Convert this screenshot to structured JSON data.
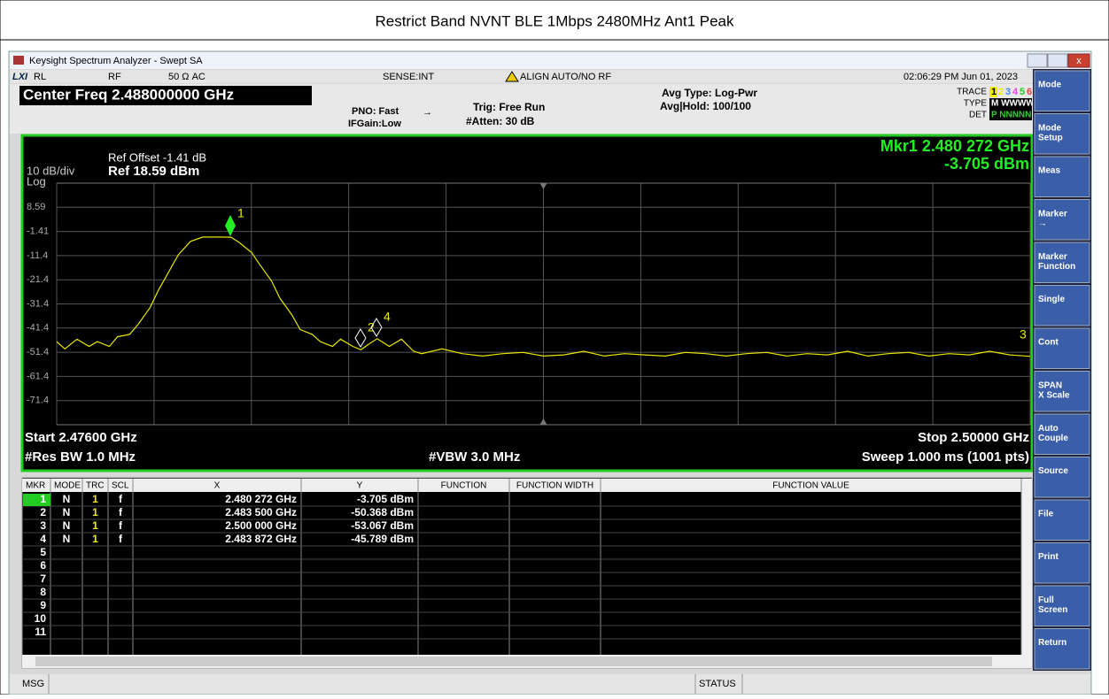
{
  "page_title": "Restrict Band NVNT BLE 1Mbps 2480MHz Ant1 Peak",
  "window_title": "Keysight Spectrum Analyzer - Swept SA",
  "status_bar": [
    "RL",
    "RF",
    "50 Ω  AC",
    "SENSE:INT",
    "ALIGN AUTO/NO RF",
    "02:06:29 PM Jun 01, 2023"
  ],
  "settings": {
    "center_freq": "Center Freq 2.488000000 GHz",
    "pno": "PNO: Fast",
    "ifgain": "IFGain:Low",
    "trig": "Trig: Free Run",
    "atten": "#Atten: 30 dB",
    "avg_type": "Avg Type: Log-Pwr",
    "avg_hold": "Avg|Hold: 100/100",
    "trace_label": "TRACE",
    "trace_nums": [
      "1",
      "2",
      "3",
      "4",
      "5",
      "6"
    ],
    "type_label": "TYPE",
    "type_value": "M WWWWW",
    "det_label": "DET",
    "det_value": "P NNNNN"
  },
  "chart_data": {
    "type": "line",
    "ref_offset": "Ref Offset -1.41 dB",
    "ref_level": "Ref 18.59 dBm",
    "scale": "10 dB/div",
    "scale_type": "Log",
    "marker_readout": [
      "Mkr1 2.480 272 GHz",
      "-3.705 dBm"
    ],
    "start": "Start 2.47600 GHz",
    "stop": "Stop 2.50000 GHz",
    "rbw": "#Res BW 1.0 MHz",
    "vbw": "#VBW 3.0 MHz",
    "sweep": "Sweep  1.000 ms (1001 pts)",
    "xlim": [
      2.476,
      2.5
    ],
    "ylim": [
      -81.41,
      18.59
    ],
    "yticks": [
      8.59,
      -1.41,
      {
        "value": -11.41,
        "label": "-11.4"
      },
      {
        "value": -21.41,
        "label": "-21.4"
      },
      {
        "value": -31.41,
        "label": "-31.4"
      },
      {
        "value": -41.41,
        "label": "-41.4"
      },
      {
        "value": -51.41,
        "label": "-51.4"
      },
      {
        "value": -61.41,
        "label": "-61.4"
      },
      {
        "value": -71.41,
        "label": "-71.4"
      }
    ],
    "color": "#e6e600",
    "x": [
      2.476,
      2.4762,
      2.4765,
      2.4768,
      2.477,
      2.4773,
      2.4775,
      2.4778,
      2.478,
      2.4783,
      2.4785,
      2.4788,
      2.479,
      2.4793,
      2.4796,
      2.48,
      2.4803,
      2.4805,
      2.4808,
      2.481,
      2.4813,
      2.4815,
      2.4818,
      2.482,
      2.4823,
      2.4825,
      2.4828,
      2.483,
      2.4833,
      2.4835,
      2.4837,
      2.4839,
      2.4842,
      2.4845,
      2.4848,
      2.485,
      2.4855,
      2.486,
      2.4865,
      2.487,
      2.4875,
      2.488,
      2.4885,
      2.489,
      2.4895,
      2.49,
      2.4905,
      2.491,
      2.4915,
      2.492,
      2.4925,
      2.493,
      2.4935,
      2.494,
      2.4945,
      2.495,
      2.4955,
      2.496,
      2.4965,
      2.497,
      2.4975,
      2.498,
      2.4985,
      2.499,
      2.4995,
      2.5
    ],
    "values": [
      -47,
      -50,
      -46,
      -49,
      -47,
      -49,
      -45,
      -44,
      -40,
      -33,
      -26,
      -17,
      -11,
      -5.5,
      -3.7,
      -3.7,
      -3.8,
      -6,
      -10,
      -15,
      -22,
      -29,
      -36,
      -42,
      -44,
      -47,
      -49,
      -46,
      -49,
      -50.4,
      -48,
      -45.8,
      -49,
      -46,
      -51,
      -52,
      -50,
      -52,
      -53,
      -52,
      -51.5,
      -53,
      -52.5,
      -51,
      -53,
      -52,
      -52.5,
      -53,
      -51.5,
      -52,
      -53,
      -52,
      -51.5,
      -53,
      -52,
      -52.5,
      -51,
      -53,
      -52,
      -51.5,
      -53,
      -52,
      -52.5,
      -51,
      -52.5,
      -53.1
    ]
  },
  "softkeys": [
    "Mode",
    "Mode Setup",
    "Meas",
    "Marker →",
    "Marker Function",
    "Single",
    "Cont",
    "SPAN X Scale",
    "Auto Couple",
    "Source",
    "File",
    "Print",
    "Full Screen",
    "Return"
  ],
  "marker_table": {
    "headers": [
      "MKR",
      "MODE",
      "TRC",
      "SCL",
      "X",
      "Y",
      "FUNCTION",
      "FUNCTION WIDTH",
      "FUNCTION VALUE"
    ],
    "rows": [
      [
        "1",
        "N",
        "1",
        "f",
        "2.480 272 GHz",
        "-3.705 dBm"
      ],
      [
        "2",
        "N",
        "1",
        "f",
        "2.483 500 GHz",
        "-50.368 dBm"
      ],
      [
        "3",
        "N",
        "1",
        "f",
        "2.500 000 GHz",
        "-53.067 dBm"
      ],
      [
        "4",
        "N",
        "1",
        "f",
        "2.483 872 GHz",
        "-45.789 dBm"
      ],
      [
        "5"
      ],
      [
        "6"
      ],
      [
        "7"
      ],
      [
        "8"
      ],
      [
        "9"
      ],
      [
        "10"
      ],
      [
        "11"
      ]
    ]
  },
  "message_bar": {
    "msg": "MSG",
    "status": "STATUS"
  }
}
